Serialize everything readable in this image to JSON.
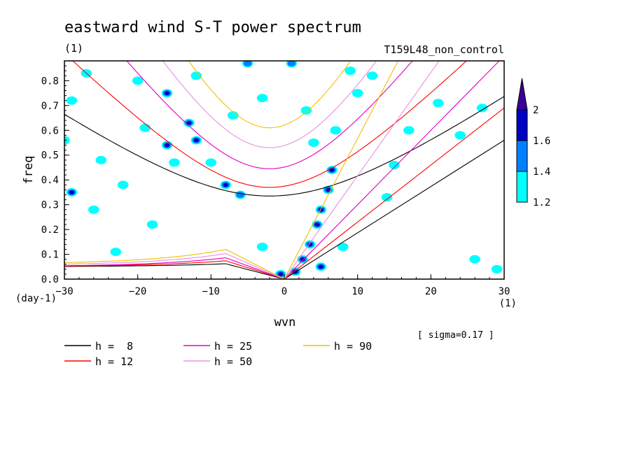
{
  "chart_data": {
    "type": "line",
    "title": "eastward wind S-T power spectrum",
    "subtitle_left": "(1)",
    "subtitle_right": "T159L48_non_control",
    "xlabel": "wvn",
    "ylabel": "freq",
    "x_unit_label": "(1)",
    "y_unit_label": "(day-1)",
    "xlim": [
      -30,
      30
    ],
    "ylim": [
      0,
      0.88
    ],
    "x_ticks": [
      -30,
      -20,
      -10,
      0,
      10,
      20,
      30
    ],
    "x_tick_labels": [
      "−30",
      "−20",
      "−10",
      "0",
      "10",
      "20",
      "30"
    ],
    "y_ticks": [
      0,
      0.1,
      0.2,
      0.3,
      0.4,
      0.5,
      0.6,
      0.7,
      0.8
    ],
    "y_tick_labels": [
      "0.0",
      "0.1",
      "0.2",
      "0.3",
      "0.4",
      "0.5",
      "0.6",
      "0.7",
      "0.8"
    ],
    "note": "[ sigma=0.17 ]",
    "colorbar": {
      "levels": [
        1.2,
        1.4,
        1.6,
        2
      ],
      "labels": [
        "1.2",
        "1.4",
        "1.6",
        "2"
      ],
      "colors": [
        "#00ffff",
        "#0080ff",
        "#0000c0",
        "#3a0098"
      ]
    },
    "series": [
      {
        "name": "h =  8",
        "color": "#000000"
      },
      {
        "name": "h = 12",
        "color": "#ff0000"
      },
      {
        "name": "h = 25",
        "color": "#e000c0"
      },
      {
        "name": "h = 50",
        "color": "#e890e0"
      },
      {
        "name": "h = 90",
        "color": "#f0c000"
      }
    ],
    "legend_placement": "bottom",
    "curves": {
      "inertio_gravity_min_freq": [
        0.335,
        0.37,
        0.445,
        0.53,
        0.61
      ],
      "rossby_gravity_asymptote_left": [
        0.05,
        0.05,
        0.05,
        0.055,
        0.06
      ],
      "kelvin_freq_at_wvn30": [
        0.56,
        0.69,
        0.9,
        1.25,
        1.7
      ]
    },
    "contours": [
      {
        "x": 6.5,
        "y": 0.44,
        "level": 1.6
      },
      {
        "x": 6.0,
        "y": 0.36,
        "level": 2
      },
      {
        "x": 5.0,
        "y": 0.28,
        "level": 2
      },
      {
        "x": 4.5,
        "y": 0.22,
        "level": 2
      },
      {
        "x": 3.5,
        "y": 0.14,
        "level": 2
      },
      {
        "x": 2.5,
        "y": 0.08,
        "level": 1.6
      },
      {
        "x": 1.5,
        "y": 0.03,
        "level": 2
      },
      {
        "x": -0.5,
        "y": 0.02,
        "level": 1.6
      },
      {
        "x": 5.0,
        "y": 0.05,
        "level": 1.6
      },
      {
        "x": -29,
        "y": 0.35,
        "level": 1.6
      },
      {
        "x": -16,
        "y": 0.75,
        "level": 1.6
      },
      {
        "x": -13,
        "y": 0.63,
        "level": 1.6
      },
      {
        "x": -12,
        "y": 0.56,
        "level": 1.6
      },
      {
        "x": -8,
        "y": 0.38,
        "level": 1.6
      },
      {
        "x": -16,
        "y": 0.54,
        "level": 1.6
      },
      {
        "x": -6,
        "y": 0.34,
        "level": 1.4
      },
      {
        "x": 1,
        "y": 0.87,
        "level": 1.4
      },
      {
        "x": -5,
        "y": 0.87,
        "level": 1.4
      },
      {
        "x": 3,
        "y": 0.68,
        "level": 1.2
      },
      {
        "x": -20,
        "y": 0.8,
        "level": 1.2
      },
      {
        "x": -25,
        "y": 0.48,
        "level": 1.2
      },
      {
        "x": -26,
        "y": 0.28,
        "level": 1.2
      },
      {
        "x": -22,
        "y": 0.38,
        "level": 1.2
      },
      {
        "x": -12,
        "y": 0.82,
        "level": 1.2
      },
      {
        "x": -3,
        "y": 0.73,
        "level": 1.2
      },
      {
        "x": -29,
        "y": 0.72,
        "level": 1.2
      },
      {
        "x": -27,
        "y": 0.83,
        "level": 1.2
      },
      {
        "x": 10,
        "y": 0.75,
        "level": 1.2
      },
      {
        "x": 12,
        "y": 0.82,
        "level": 1.2
      },
      {
        "x": 9,
        "y": 0.84,
        "level": 1.2
      },
      {
        "x": 7,
        "y": 0.6,
        "level": 1.2
      },
      {
        "x": 4,
        "y": 0.55,
        "level": 1.2
      },
      {
        "x": -15,
        "y": 0.47,
        "level": 1.2
      },
      {
        "x": -10,
        "y": 0.47,
        "level": 1.2
      },
      {
        "x": -7,
        "y": 0.66,
        "level": 1.2
      },
      {
        "x": 8,
        "y": 0.13,
        "level": 1.2
      },
      {
        "x": 26,
        "y": 0.08,
        "level": 1.2
      },
      {
        "x": 29,
        "y": 0.04,
        "level": 1.2
      },
      {
        "x": 27,
        "y": 0.69,
        "level": 1.2
      },
      {
        "x": 21,
        "y": 0.71,
        "level": 1.2
      },
      {
        "x": 15,
        "y": 0.46,
        "level": 1.2
      },
      {
        "x": -18,
        "y": 0.22,
        "level": 1.2
      },
      {
        "x": -3,
        "y": 0.13,
        "level": 1.2
      },
      {
        "x": -23,
        "y": 0.11,
        "level": 1.2
      },
      {
        "x": 14,
        "y": 0.33,
        "level": 1.2
      },
      {
        "x": -19,
        "y": 0.61,
        "level": 1.2
      },
      {
        "x": -30,
        "y": 0.56,
        "level": 1.2
      },
      {
        "x": 17,
        "y": 0.6,
        "level": 1.2
      },
      {
        "x": 24,
        "y": 0.58,
        "level": 1.2
      }
    ]
  }
}
